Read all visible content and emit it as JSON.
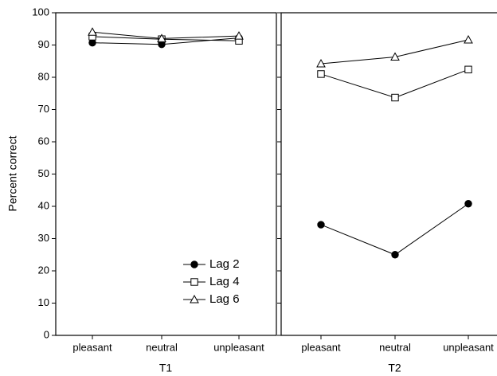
{
  "chart_data": [
    {
      "type": "line",
      "ylabel": "Percent correct",
      "xlabel": "T1",
      "categories": [
        "pleasant",
        "neutral",
        "unpleasant"
      ],
      "ylim": [
        0,
        100
      ],
      "yticks": [
        0,
        10,
        20,
        30,
        40,
        50,
        60,
        70,
        80,
        90,
        100
      ],
      "legend": "lower right",
      "series": [
        {
          "name": "Lag 2",
          "color": "#000000",
          "marker": "circle-filled",
          "values": [
            90.7,
            90.2,
            92.2
          ]
        },
        {
          "name": "Lag 4",
          "color": "#000000",
          "marker": "square-open",
          "values": [
            92.6,
            91.8,
            91.3
          ]
        },
        {
          "name": "Lag 6",
          "color": "#000000",
          "marker": "triangle-open",
          "values": [
            94.0,
            92.0,
            92.8
          ]
        }
      ]
    },
    {
      "type": "line",
      "xlabel": "T2",
      "categories": [
        "pleasant",
        "neutral",
        "unpleasant"
      ],
      "ylim": [
        0,
        100
      ],
      "series": [
        {
          "color": "#000000",
          "marker": "circle-filled",
          "values": [
            34.3,
            25.0,
            40.8
          ]
        },
        {
          "color": "#000000",
          "marker": "square-open",
          "values": [
            81.0,
            73.7,
            82.4
          ]
        },
        {
          "color": "#000000",
          "marker": "triangle-open",
          "values": [
            84.2,
            86.3,
            91.6
          ]
        }
      ]
    }
  ]
}
